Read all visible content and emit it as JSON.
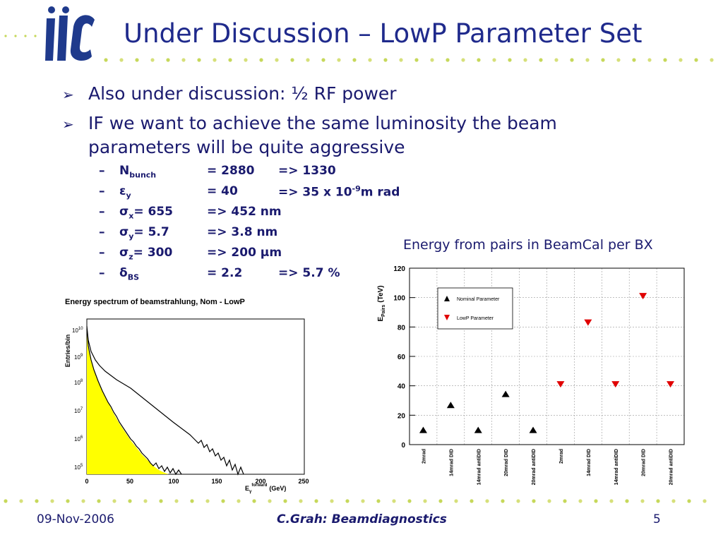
{
  "header": {
    "title": "Under Discussion – LowP Parameter Set"
  },
  "bullets": [
    {
      "text": "Also under discussion: ½ RF power"
    },
    {
      "line1": "IF we want to achieve the same luminosity the beam",
      "line2": "parameters will be quite aggressive"
    }
  ],
  "params": [
    {
      "dash": "–",
      "sym": "N",
      "sub": "bunch",
      "nom": "= 2880",
      "lowp": "=> 1330"
    },
    {
      "dash": "–",
      "sym": "ε",
      "sub": "y",
      "nom": "= 40",
      "lowp_pre": "=> 35 x 10",
      "lowp_sup": "-9",
      "lowp_post": "m rad"
    },
    {
      "dash": "–",
      "sym": "σ",
      "sub": "x",
      "nom": "= 655",
      "lowp": "=> 452 nm"
    },
    {
      "dash": "–",
      "sym": "σ",
      "sub": "y",
      "nom": "= 5.7",
      "lowp": "=> 3.8 nm"
    },
    {
      "dash": "–",
      "sym": "σ",
      "sub": "z",
      "nom": "= 300",
      "lowp": "=> 200 µm"
    },
    {
      "dash": "–",
      "sym": "δ",
      "sub": "BS",
      "nom": "= 2.2",
      "lowp": "=> 5.7 %"
    }
  ],
  "right_caption": "Energy from pairs in BeamCal per BX",
  "left_plot": {
    "title": "Energy spectrum of beamstrahlung, Nom - LowP",
    "ylabel": "Entries/bin",
    "xlabel_main": "E",
    "xlabel_sub": "γ",
    "xlabel_sup": "forward",
    "xlabel_unit": "(GeV)",
    "xticks": [
      "0",
      "50",
      "100",
      "150",
      "200",
      "250"
    ],
    "yticks": [
      "10",
      "10",
      "10",
      "10",
      "10",
      "10"
    ],
    "yexps": [
      "5",
      "6",
      "7",
      "8",
      "9",
      "10"
    ],
    "colors": {
      "fill": "#ffff00",
      "line": "#000000"
    }
  },
  "chart_data": {
    "type": "scatter",
    "title": "",
    "ylabel_main": "E",
    "ylabel_sub": "Pairs",
    "ylabel_unit": "(TeV)",
    "ylim": [
      0,
      120
    ],
    "yticks": [
      "0",
      "20",
      "40",
      "60",
      "80",
      "100",
      "120"
    ],
    "grid": true,
    "legend_placement": "top-left",
    "categories": [
      "2mrad",
      "14mrad DID",
      "14mrad antiDID",
      "20mrad DID",
      "20mrad antiDID",
      "2mrad",
      "14mrad DID",
      "14mrad antiDID",
      "20mrad DID",
      "20mrad antiDID"
    ],
    "series": [
      {
        "name": "Nominal Parameter",
        "marker": "triangle-up",
        "color": "#000000",
        "indices": [
          0,
          1,
          2,
          3,
          4
        ],
        "values": [
          10,
          27,
          10,
          34.5,
          10
        ]
      },
      {
        "name": "LowP Parameter",
        "marker": "triangle-down",
        "color": "#e00000",
        "indices": [
          5,
          6,
          7,
          8,
          9
        ],
        "values": [
          41,
          83,
          41,
          101,
          41
        ]
      }
    ]
  },
  "footer": {
    "date": "09-Nov-2006",
    "author": "C.Grah: Beamdiagnostics",
    "page": "5"
  }
}
